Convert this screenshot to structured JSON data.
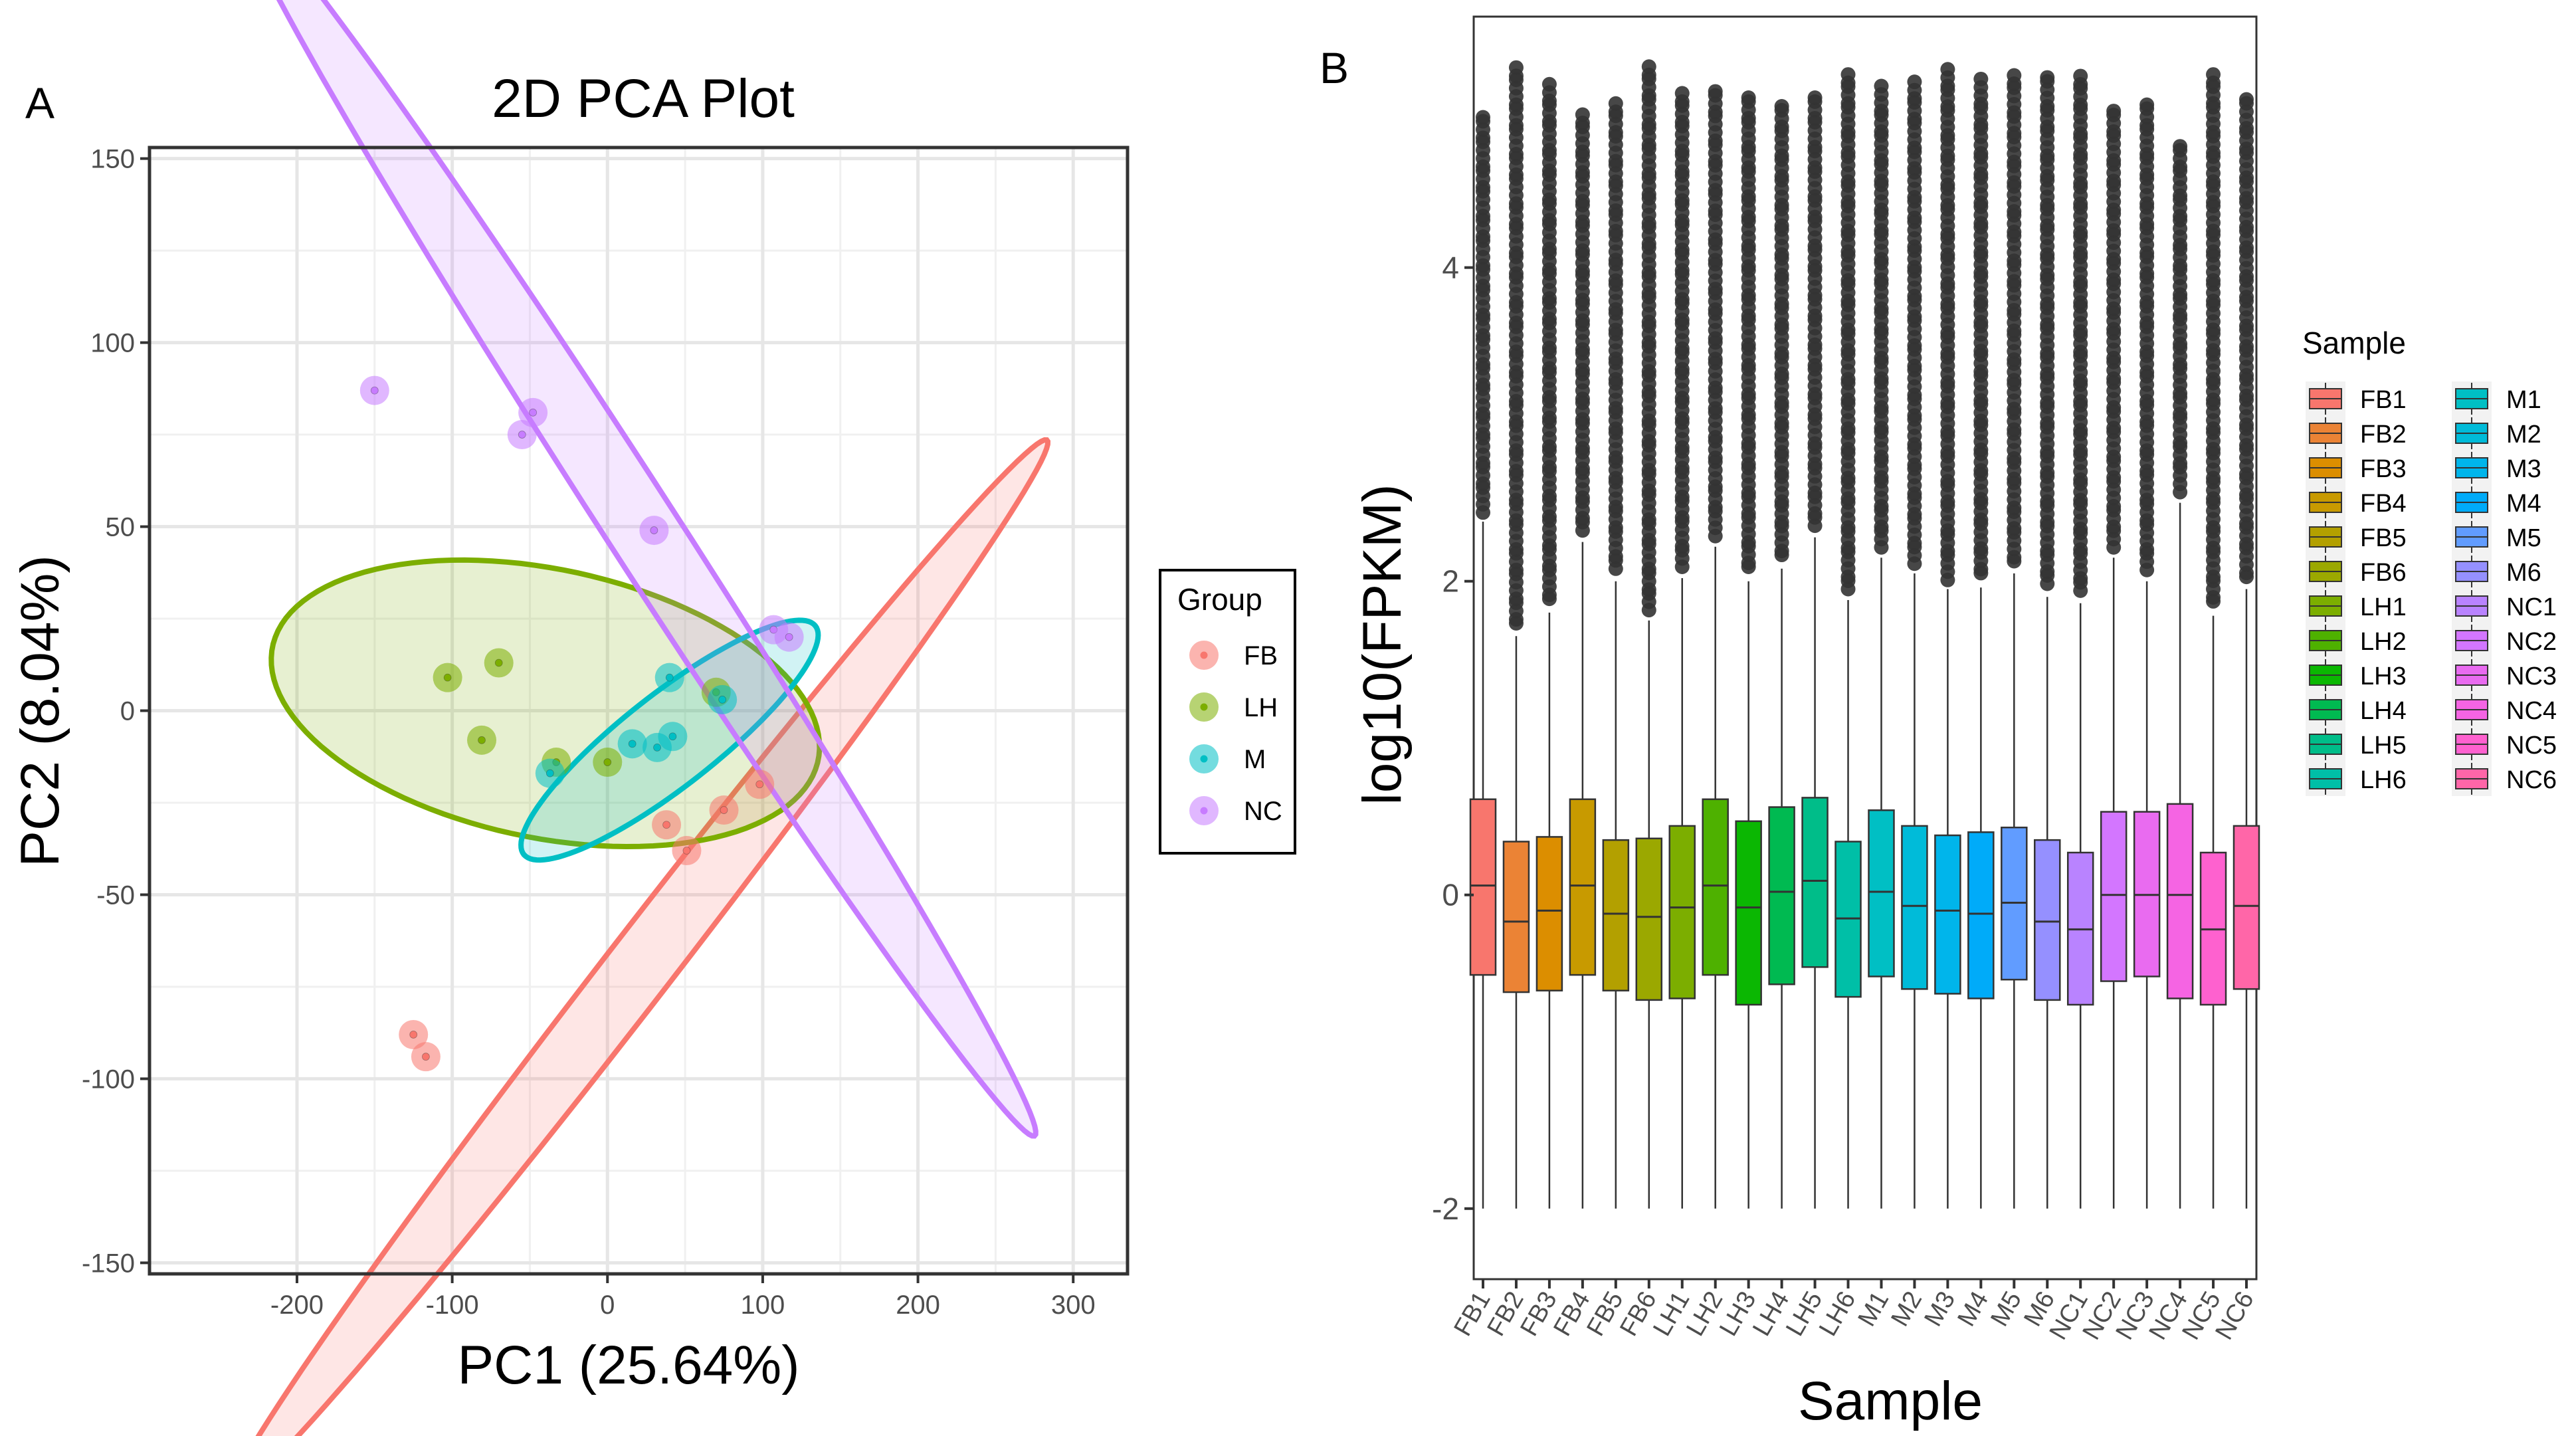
{
  "panels": {
    "a": {
      "letter": "A"
    },
    "b": {
      "letter": "B"
    }
  },
  "chart_data": [
    {
      "type": "scatter",
      "title": "2D PCA Plot",
      "xlabel": "PC1 (25.64%)",
      "ylabel": "PC2 (8.04%)",
      "xlim": [
        -295,
        335
      ],
      "ylim": [
        -153,
        153
      ],
      "xticks": [
        -200,
        -100,
        0,
        100,
        200,
        300
      ],
      "yticks": [
        -150,
        -100,
        -50,
        0,
        50,
        100,
        150
      ],
      "grid": true,
      "legend": {
        "title": "Group",
        "position": "right"
      },
      "series": [
        {
          "name": "FB",
          "color": "#F8766D",
          "points": [
            [
              -125,
              -88
            ],
            [
              -117,
              -94
            ],
            [
              38,
              -31
            ],
            [
              51,
              -38
            ],
            [
              75,
              -27
            ],
            [
              98,
              -20
            ]
          ],
          "ellipse": {
            "cx": 20,
            "cy": -70,
            "a": 300,
            "b": 13,
            "angle_deg": 28.5
          }
        },
        {
          "name": "LH",
          "color": "#7CAE00",
          "points": [
            [
              -103,
              9
            ],
            [
              -70,
              13
            ],
            [
              -81,
              -8
            ],
            [
              -33,
              -14
            ],
            [
              0,
              -14
            ],
            [
              70,
              5
            ]
          ],
          "ellipse": {
            "cx": -40,
            "cy": 2,
            "a": 177,
            "b": 37,
            "angle_deg": -4
          }
        },
        {
          "name": "M",
          "color": "#00BFC4",
          "points": [
            [
              -37,
              -17
            ],
            [
              16,
              -9
            ],
            [
              32,
              -10
            ],
            [
              42,
              -7
            ],
            [
              40,
              9
            ],
            [
              74,
              3
            ]
          ],
          "ellipse": {
            "cx": 40,
            "cy": -8,
            "a": 100,
            "b": 15,
            "angle_deg": 17
          }
        },
        {
          "name": "NC",
          "color": "#C77CFF",
          "points": [
            [
              -150,
              87
            ],
            [
              -55,
              75
            ],
            [
              -48,
              81
            ],
            [
              30,
              49
            ],
            [
              107,
              22
            ],
            [
              117,
              20
            ]
          ],
          "ellipse": {
            "cx": 20,
            "cy": 51,
            "a": 305,
            "b": 15,
            "angle_deg": -33
          }
        }
      ]
    },
    {
      "type": "box",
      "xlabel": "Sample",
      "ylabel": "log10(FPKM)",
      "ylim": [
        -2.45,
        5.6
      ],
      "yticks": [
        -2,
        0,
        2,
        4
      ],
      "legend": {
        "title": "Sample",
        "position": "right"
      },
      "categories": [
        "FB1",
        "FB2",
        "FB3",
        "FB4",
        "FB5",
        "FB6",
        "LH1",
        "LH2",
        "LH3",
        "LH4",
        "LH5",
        "LH6",
        "M1",
        "M2",
        "M3",
        "M4",
        "M5",
        "M6",
        "NC1",
        "NC2",
        "NC3",
        "NC4",
        "NC5",
        "NC6"
      ],
      "colors": [
        "#F8766D",
        "#EB8335",
        "#DC8E00",
        "#C89A00",
        "#B3A000",
        "#9BA800",
        "#7CAE00",
        "#4EB100",
        "#0BB702",
        "#00BA51",
        "#00BD89",
        "#00BFA7",
        "#00BFC4",
        "#00BBD9",
        "#00B5EB",
        "#00ABF9",
        "#619CFF",
        "#9590FF",
        "#B983FF",
        "#D376FF",
        "#E96BF0",
        "#F564E3",
        "#FE61CF",
        "#FF66A8"
      ],
      "box_stats": [
        {
          "min": -2,
          "q1": -0.51,
          "median": 0.06,
          "q3": 0.61,
          "whisker_high": 2.38,
          "outliers_from": 2.45,
          "max": 5.0
        },
        {
          "min": -2,
          "q1": -0.62,
          "median": -0.17,
          "q3": 0.34,
          "whisker_high": 1.65,
          "outliers_from": 1.72,
          "max": 5.3
        },
        {
          "min": -2,
          "q1": -0.61,
          "median": -0.1,
          "q3": 0.37,
          "whisker_high": 1.8,
          "outliers_from": 1.88,
          "max": 5.22
        },
        {
          "min": -2,
          "q1": -0.51,
          "median": 0.06,
          "q3": 0.61,
          "whisker_high": 2.25,
          "outliers_from": 2.32,
          "max": 5.0
        },
        {
          "min": -2,
          "q1": -0.61,
          "median": -0.12,
          "q3": 0.35,
          "whisker_high": 2.0,
          "outliers_from": 2.08,
          "max": 5.08
        },
        {
          "min": -2,
          "q1": -0.67,
          "median": -0.14,
          "q3": 0.36,
          "whisker_high": 1.75,
          "outliers_from": 1.82,
          "max": 5.32
        },
        {
          "min": -2,
          "q1": -0.66,
          "median": -0.08,
          "q3": 0.44,
          "whisker_high": 2.02,
          "outliers_from": 2.1,
          "max": 5.15
        },
        {
          "min": -2,
          "q1": -0.51,
          "median": 0.06,
          "q3": 0.61,
          "whisker_high": 2.22,
          "outliers_from": 2.3,
          "max": 5.16
        },
        {
          "min": -2,
          "q1": -0.7,
          "median": -0.08,
          "q3": 0.47,
          "whisker_high": 2.0,
          "outliers_from": 2.08,
          "max": 5.1
        },
        {
          "min": -2,
          "q1": -0.57,
          "median": 0.02,
          "q3": 0.56,
          "whisker_high": 2.08,
          "outliers_from": 2.16,
          "max": 5.06
        },
        {
          "min": -2,
          "q1": -0.46,
          "median": 0.09,
          "q3": 0.62,
          "whisker_high": 2.28,
          "outliers_from": 2.35,
          "max": 5.1
        },
        {
          "min": -2,
          "q1": -0.65,
          "median": -0.15,
          "q3": 0.34,
          "whisker_high": 1.88,
          "outliers_from": 1.95,
          "max": 5.28
        },
        {
          "min": -2,
          "q1": -0.52,
          "median": 0.02,
          "q3": 0.54,
          "whisker_high": 2.15,
          "outliers_from": 2.22,
          "max": 5.16
        },
        {
          "min": -2,
          "q1": -0.6,
          "median": -0.07,
          "q3": 0.44,
          "whisker_high": 2.05,
          "outliers_from": 2.12,
          "max": 5.2
        },
        {
          "min": -2,
          "q1": -0.63,
          "median": -0.1,
          "q3": 0.38,
          "whisker_high": 1.95,
          "outliers_from": 2.02,
          "max": 5.3
        },
        {
          "min": -2,
          "q1": -0.66,
          "median": -0.12,
          "q3": 0.4,
          "whisker_high": 1.96,
          "outliers_from": 2.04,
          "max": 5.22
        },
        {
          "min": -2,
          "q1": -0.54,
          "median": -0.05,
          "q3": 0.43,
          "whisker_high": 2.05,
          "outliers_from": 2.12,
          "max": 5.24
        },
        {
          "min": -2,
          "q1": -0.67,
          "median": -0.17,
          "q3": 0.35,
          "whisker_high": 1.9,
          "outliers_from": 1.98,
          "max": 5.24
        },
        {
          "min": -2,
          "q1": -0.7,
          "median": -0.22,
          "q3": 0.27,
          "whisker_high": 1.86,
          "outliers_from": 1.94,
          "max": 5.26
        },
        {
          "min": -2,
          "q1": -0.55,
          "median": 0.0,
          "q3": 0.53,
          "whisker_high": 2.15,
          "outliers_from": 2.22,
          "max": 5.02
        },
        {
          "min": -2,
          "q1": -0.52,
          "median": 0.0,
          "q3": 0.53,
          "whisker_high": 2.0,
          "outliers_from": 2.08,
          "max": 5.04
        },
        {
          "min": -2,
          "q1": -0.66,
          "median": 0.0,
          "q3": 0.58,
          "whisker_high": 2.5,
          "outliers_from": 2.58,
          "max": 4.82
        },
        {
          "min": -2,
          "q1": -0.7,
          "median": -0.22,
          "q3": 0.27,
          "whisker_high": 1.78,
          "outliers_from": 1.86,
          "max": 5.24
        },
        {
          "min": -2,
          "q1": -0.6,
          "median": -0.07,
          "q3": 0.44,
          "whisker_high": 1.95,
          "outliers_from": 2.02,
          "max": 5.12
        }
      ]
    }
  ]
}
